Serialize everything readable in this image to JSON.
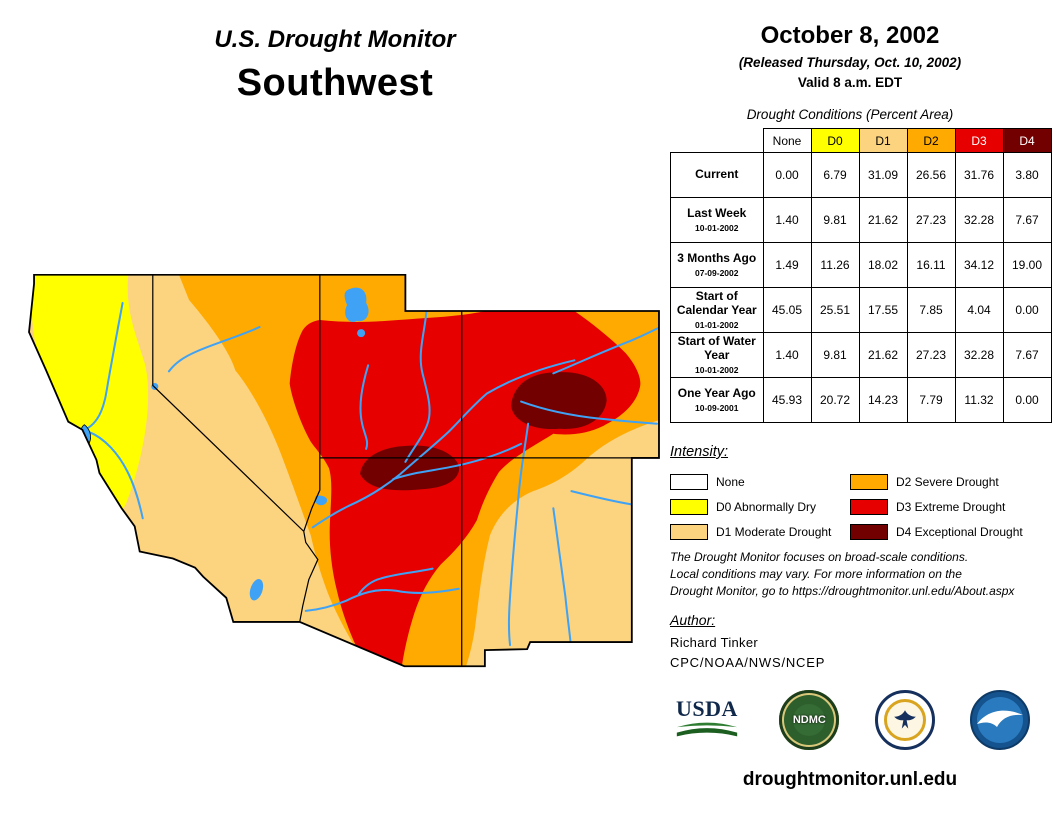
{
  "colors": {
    "none": "#FFFFFF",
    "d0": "#FFFF00",
    "d1": "#FCD37F",
    "d2": "#FFAA00",
    "d3": "#E60000",
    "d4": "#730000",
    "water": "#3FA2F5",
    "outline": "#000000"
  },
  "header": {
    "title": "U.S. Drought Monitor",
    "region": "Southwest",
    "date": "October 8, 2002",
    "released": "(Released Thursday, Oct. 10, 2002)",
    "valid": "Valid 8 a.m. EDT"
  },
  "table": {
    "caption": "Drought Conditions (Percent Area)",
    "columns": [
      "None",
      "D0",
      "D1",
      "D2",
      "D3",
      "D4"
    ],
    "column_colors": [
      "#FFFFFF",
      "#FFFF00",
      "#FCD37F",
      "#FFAA00",
      "#E60000",
      "#730000"
    ],
    "column_text_colors": [
      "#000000",
      "#000000",
      "#000000",
      "#000000",
      "#FFFFFF",
      "#FFFFFF"
    ],
    "rows": [
      {
        "label": "Current",
        "date": "",
        "values": [
          "0.00",
          "6.79",
          "31.09",
          "26.56",
          "31.76",
          "3.80"
        ]
      },
      {
        "label": "Last Week",
        "date": "10-01-2002",
        "values": [
          "1.40",
          "9.81",
          "21.62",
          "27.23",
          "32.28",
          "7.67"
        ]
      },
      {
        "label": "3 Months Ago",
        "date": "07-09-2002",
        "values": [
          "1.49",
          "11.26",
          "18.02",
          "16.11",
          "34.12",
          "19.00"
        ]
      },
      {
        "label": "Start of Calendar Year",
        "date": "01-01-2002",
        "values": [
          "45.05",
          "25.51",
          "17.55",
          "7.85",
          "4.04",
          "0.00"
        ]
      },
      {
        "label": "Start of Water Year",
        "date": "10-01-2002",
        "values": [
          "1.40",
          "9.81",
          "21.62",
          "27.23",
          "32.28",
          "7.67"
        ]
      },
      {
        "label": "One Year Ago",
        "date": "10-09-2001",
        "values": [
          "45.93",
          "20.72",
          "14.23",
          "7.79",
          "11.32",
          "0.00"
        ]
      }
    ]
  },
  "legend": {
    "title": "Intensity:",
    "items": [
      {
        "label": "None",
        "color": "#FFFFFF"
      },
      {
        "label": "D0 Abnormally Dry",
        "color": "#FFFF00"
      },
      {
        "label": "D1 Moderate Drought",
        "color": "#FCD37F"
      },
      {
        "label": "D2 Severe Drought",
        "color": "#FFAA00"
      },
      {
        "label": "D3 Extreme Drought",
        "color": "#E60000"
      },
      {
        "label": "D4 Exceptional Drought",
        "color": "#730000"
      }
    ]
  },
  "notes": {
    "lines": [
      "The Drought Monitor focuses on broad-scale conditions.",
      "Local conditions may vary. For more information on the",
      "Drought Monitor, go to https://droughtmonitor.unl.edu/About.aspx"
    ]
  },
  "author": {
    "heading": "Author:",
    "name": "Richard Tinker",
    "org": "CPC/NOAA/NWS/NCEP"
  },
  "logos": {
    "usda": "USDA",
    "ndmc": "NDMC"
  },
  "footer": {
    "url": "droughtmonitor.unl.edu"
  }
}
